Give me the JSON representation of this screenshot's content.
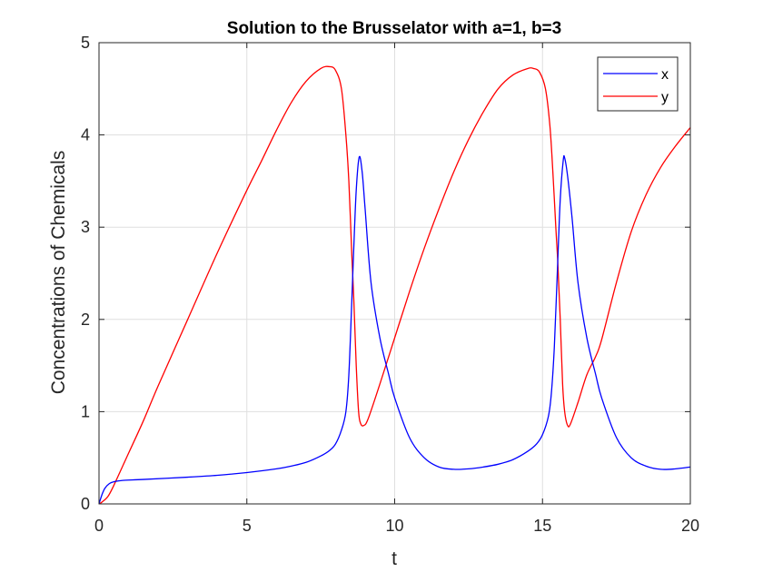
{
  "chart_data": {
    "type": "line",
    "title": "Solution to the Brusselator with a=1, b=3",
    "xlabel": "t",
    "ylabel": "Concentrations of Chemicals",
    "xlim": [
      0,
      20
    ],
    "ylim": [
      0,
      5
    ],
    "xticks": [
      0,
      5,
      10,
      15,
      20
    ],
    "xtick_labels": [
      "0",
      "5",
      "10",
      "15",
      "20"
    ],
    "yticks": [
      0,
      1,
      2,
      3,
      4,
      5
    ],
    "ytick_labels": [
      "0",
      "1",
      "2",
      "3",
      "4",
      "5"
    ],
    "grid": true,
    "legend_position": "top-right",
    "series": [
      {
        "name": "x",
        "color": "#0000ff",
        "points": [
          [
            0,
            0.0
          ],
          [
            0.1,
            0.1
          ],
          [
            0.2,
            0.17
          ],
          [
            0.35,
            0.22
          ],
          [
            0.5,
            0.24
          ],
          [
            0.8,
            0.255
          ],
          [
            1.5,
            0.265
          ],
          [
            3,
            0.29
          ],
          [
            4,
            0.31
          ],
          [
            5,
            0.34
          ],
          [
            6,
            0.38
          ],
          [
            6.5,
            0.41
          ],
          [
            7,
            0.45
          ],
          [
            7.5,
            0.52
          ],
          [
            7.8,
            0.58
          ],
          [
            8.0,
            0.65
          ],
          [
            8.2,
            0.8
          ],
          [
            8.35,
            1.0
          ],
          [
            8.45,
            1.4
          ],
          [
            8.55,
            2.2
          ],
          [
            8.62,
            2.8
          ],
          [
            8.7,
            3.4
          ],
          [
            8.8,
            3.76
          ],
          [
            8.9,
            3.6
          ],
          [
            9.0,
            3.2
          ],
          [
            9.2,
            2.4
          ],
          [
            9.5,
            1.8
          ],
          [
            9.8,
            1.4
          ],
          [
            10,
            1.15
          ],
          [
            10.5,
            0.72
          ],
          [
            11,
            0.5
          ],
          [
            11.5,
            0.4
          ],
          [
            12,
            0.375
          ],
          [
            12.5,
            0.38
          ],
          [
            13,
            0.4
          ],
          [
            13.5,
            0.43
          ],
          [
            14,
            0.48
          ],
          [
            14.5,
            0.57
          ],
          [
            14.8,
            0.65
          ],
          [
            15.0,
            0.75
          ],
          [
            15.2,
            0.95
          ],
          [
            15.3,
            1.2
          ],
          [
            15.4,
            1.7
          ],
          [
            15.5,
            2.5
          ],
          [
            15.6,
            3.3
          ],
          [
            15.7,
            3.72
          ],
          [
            15.75,
            3.75
          ],
          [
            15.85,
            3.55
          ],
          [
            16.0,
            3.1
          ],
          [
            16.2,
            2.4
          ],
          [
            16.5,
            1.8
          ],
          [
            16.8,
            1.4
          ],
          [
            17,
            1.15
          ],
          [
            17.5,
            0.72
          ],
          [
            18,
            0.5
          ],
          [
            18.5,
            0.41
          ],
          [
            19,
            0.375
          ],
          [
            19.5,
            0.38
          ],
          [
            20,
            0.4
          ]
        ]
      },
      {
        "name": "y",
        "color": "#ff0000",
        "points": [
          [
            0,
            0.0
          ],
          [
            0.1,
            0.02
          ],
          [
            0.3,
            0.08
          ],
          [
            0.5,
            0.2
          ],
          [
            1,
            0.55
          ],
          [
            1.5,
            0.9
          ],
          [
            2,
            1.28
          ],
          [
            3,
            2.0
          ],
          [
            4,
            2.72
          ],
          [
            5,
            3.4
          ],
          [
            5.5,
            3.72
          ],
          [
            6,
            4.05
          ],
          [
            6.5,
            4.35
          ],
          [
            7,
            4.58
          ],
          [
            7.5,
            4.72
          ],
          [
            7.8,
            4.74
          ],
          [
            8.0,
            4.7
          ],
          [
            8.2,
            4.5
          ],
          [
            8.35,
            4.0
          ],
          [
            8.45,
            3.5
          ],
          [
            8.55,
            2.7
          ],
          [
            8.62,
            2.2
          ],
          [
            8.7,
            1.5
          ],
          [
            8.78,
            1.0
          ],
          [
            8.85,
            0.87
          ],
          [
            8.95,
            0.85
          ],
          [
            9.1,
            0.92
          ],
          [
            9.5,
            1.3
          ],
          [
            10,
            1.8
          ],
          [
            10.5,
            2.3
          ],
          [
            11,
            2.77
          ],
          [
            11.5,
            3.2
          ],
          [
            12,
            3.6
          ],
          [
            12.5,
            3.95
          ],
          [
            13,
            4.25
          ],
          [
            13.5,
            4.5
          ],
          [
            14,
            4.65
          ],
          [
            14.5,
            4.72
          ],
          [
            14.7,
            4.72
          ],
          [
            14.9,
            4.68
          ],
          [
            15.1,
            4.5
          ],
          [
            15.25,
            4.1
          ],
          [
            15.35,
            3.6
          ],
          [
            15.45,
            3.0
          ],
          [
            15.52,
            2.6
          ],
          [
            15.6,
            2.0
          ],
          [
            15.68,
            1.3
          ],
          [
            15.75,
            1.0
          ],
          [
            15.85,
            0.85
          ],
          [
            15.95,
            0.87
          ],
          [
            16.2,
            1.1
          ],
          [
            16.5,
            1.4
          ],
          [
            16.8,
            1.6
          ],
          [
            17,
            1.78
          ],
          [
            17.5,
            2.4
          ],
          [
            18,
            2.95
          ],
          [
            18.5,
            3.35
          ],
          [
            19,
            3.65
          ],
          [
            19.5,
            3.88
          ],
          [
            20,
            4.08
          ]
        ]
      }
    ]
  }
}
